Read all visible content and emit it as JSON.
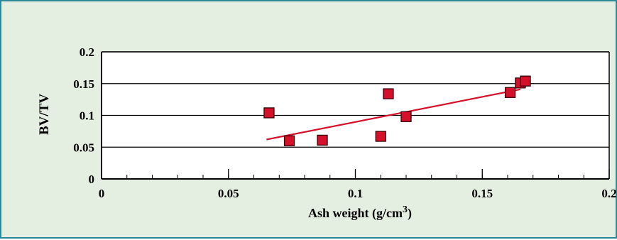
{
  "chart_data": {
    "type": "scatter",
    "title": "",
    "xlabel": "Ash weight (g/cm",
    "xlabel_superscript": "3",
    "xlabel_suffix": ")",
    "ylabel": "BV/TV",
    "xlim": [
      0,
      0.2
    ],
    "ylim": [
      0,
      0.2
    ],
    "xticks": [
      {
        "value": 0,
        "label": "0"
      },
      {
        "value": 0.05,
        "label": "0.05"
      },
      {
        "value": 0.1,
        "label": "0.1"
      },
      {
        "value": 0.15,
        "label": "0.15"
      },
      {
        "value": 0.2,
        "label": "0.2"
      }
    ],
    "yticks": [
      {
        "value": 0,
        "label": "0"
      },
      {
        "value": 0.05,
        "label": "0.05"
      },
      {
        "value": 0.1,
        "label": "0.1"
      },
      {
        "value": 0.15,
        "label": "0.15"
      },
      {
        "value": 0.2,
        "label": "0.2"
      }
    ],
    "x_minor_step": 0.01,
    "grid": "horizontal",
    "series": [
      {
        "marker": "square",
        "points": [
          {
            "x": 0.066,
            "y": 0.104
          },
          {
            "x": 0.074,
            "y": 0.06
          },
          {
            "x": 0.087,
            "y": 0.061
          },
          {
            "x": 0.11,
            "y": 0.067
          },
          {
            "x": 0.113,
            "y": 0.134
          },
          {
            "x": 0.12,
            "y": 0.098
          },
          {
            "x": 0.161,
            "y": 0.136
          },
          {
            "x": 0.165,
            "y": 0.151
          },
          {
            "x": 0.167,
            "y": 0.154
          }
        ]
      }
    ],
    "trendline": {
      "x": [
        0.065,
        0.165
      ],
      "y": [
        0.062,
        0.141
      ]
    }
  },
  "colors": {
    "background": "#e4efe1",
    "frame": "#2a8a9a",
    "marker_fill": "#d4102a",
    "marker_stroke": "#3a0008",
    "trendline": "#d4102a",
    "axis": "#000000"
  }
}
